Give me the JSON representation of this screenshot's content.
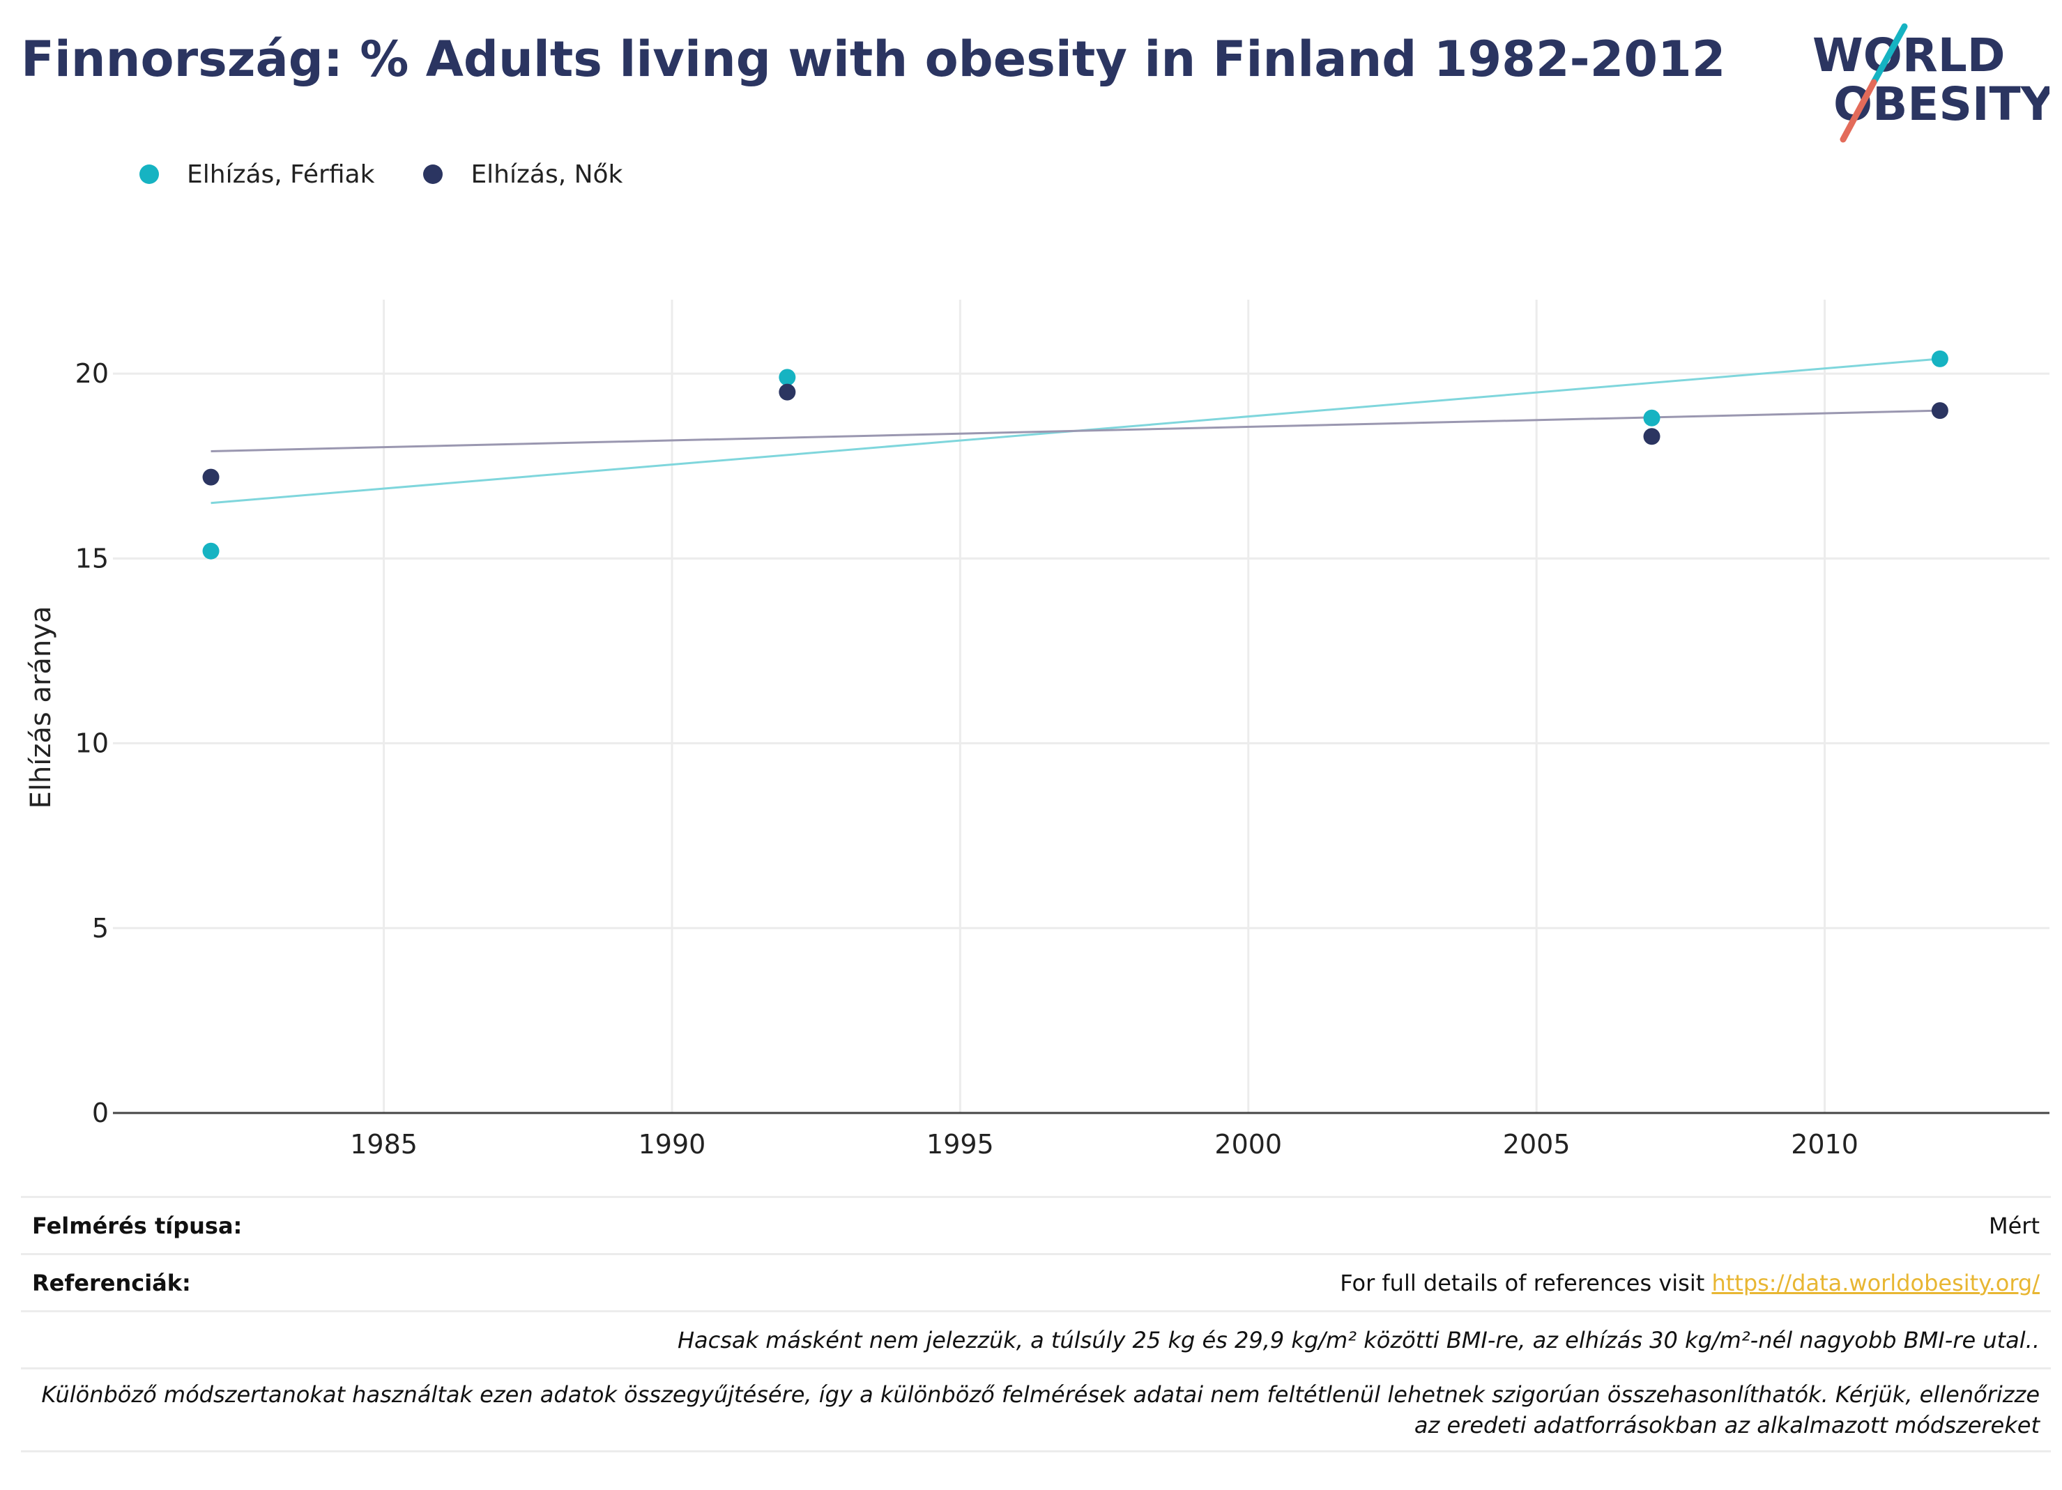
{
  "title": "Finnország: % Adults living with obesity in Finland 1982-2012",
  "logo": {
    "line1": "WORLD",
    "line2": "OBESITY"
  },
  "colors": {
    "men": "#16b3c2",
    "women": "#2b3561",
    "men_trend": "#7fd6dc",
    "women_trend": "#9a97b0",
    "title": "#2b3561",
    "link": "#e8b632"
  },
  "legend": [
    {
      "label": "Elhízás, Férfiak"
    },
    {
      "label": "Elhízás, Nők"
    }
  ],
  "chart_data": {
    "type": "scatter",
    "ylabel": "Elhízás aránya",
    "xlim": [
      1980.3,
      2013.9
    ],
    "ylim": [
      0,
      22
    ],
    "x_ticks": [
      1985,
      1990,
      1995,
      2000,
      2005,
      2010
    ],
    "y_ticks": [
      0,
      5,
      10,
      15,
      20
    ],
    "grid": true,
    "legend_position": "top-left",
    "series": [
      {
        "name": "Elhízás, Férfiak",
        "x": [
          1982,
          1992,
          2007,
          2012
        ],
        "y": [
          15.2,
          19.9,
          18.8,
          20.4
        ],
        "trend": [
          [
            1982,
            16.5
          ],
          [
            2012,
            20.4
          ]
        ]
      },
      {
        "name": "Elhízás, Nők",
        "x": [
          1982,
          1992,
          2007,
          2012
        ],
        "y": [
          17.2,
          19.5,
          18.3,
          19.0
        ],
        "trend": [
          [
            1982,
            17.9
          ],
          [
            2012,
            19.0
          ]
        ]
      }
    ]
  },
  "footer": {
    "survey_label": "Felmérés típusa:",
    "survey_value": "Mért",
    "ref_label": "Referenciák:",
    "ref_text": "For full details of references visit ",
    "ref_link": "https://data.worldobesity.org/",
    "note1": "Hacsak másként nem jelezzük, a túlsúly 25 kg és 29,9 kg/m² közötti BMI-re, az elhízás 30 kg/m²-nél nagyobb BMI-re utal..",
    "note2": "Különböző módszertanokat használtak ezen adatok összegyűjtésére, így a különböző felmérések adatai nem feltétlenül lehetnek szigorúan összehasonlíthatók. Kérjük, ellenőrizze az eredeti adatforrásokban az alkalmazott módszereket"
  }
}
